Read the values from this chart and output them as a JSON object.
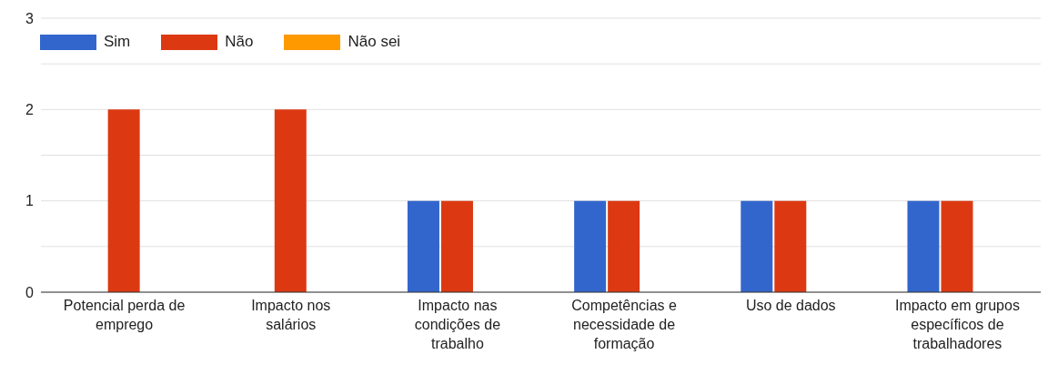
{
  "chart_data": {
    "type": "bar",
    "categories": [
      "Potencial perda de emprego",
      "Impacto nos salários",
      "Impacto nas condições de trabalho",
      "Competências e necessidade de formação",
      "Uso de dados",
      "Impacto em grupos específicos de trabalhadores"
    ],
    "series": [
      {
        "name": "Sim",
        "color": "#3366cc",
        "values": [
          0,
          0,
          1,
          1,
          1,
          1
        ]
      },
      {
        "name": "Não",
        "color": "#dc3912",
        "values": [
          2,
          2,
          1,
          1,
          1,
          1
        ]
      },
      {
        "name": "Não sei",
        "color": "#ff9900",
        "values": [
          0,
          0,
          0,
          0,
          0,
          0
        ]
      }
    ],
    "ylim": [
      0,
      3
    ],
    "yticks": [
      0,
      {
        "value": 0.5,
        "label": null
      },
      1,
      {
        "value": 1.5,
        "label": null
      },
      2,
      {
        "value": 2.5,
        "label": null
      },
      3
    ],
    "grid": "y",
    "legend": "top left"
  }
}
